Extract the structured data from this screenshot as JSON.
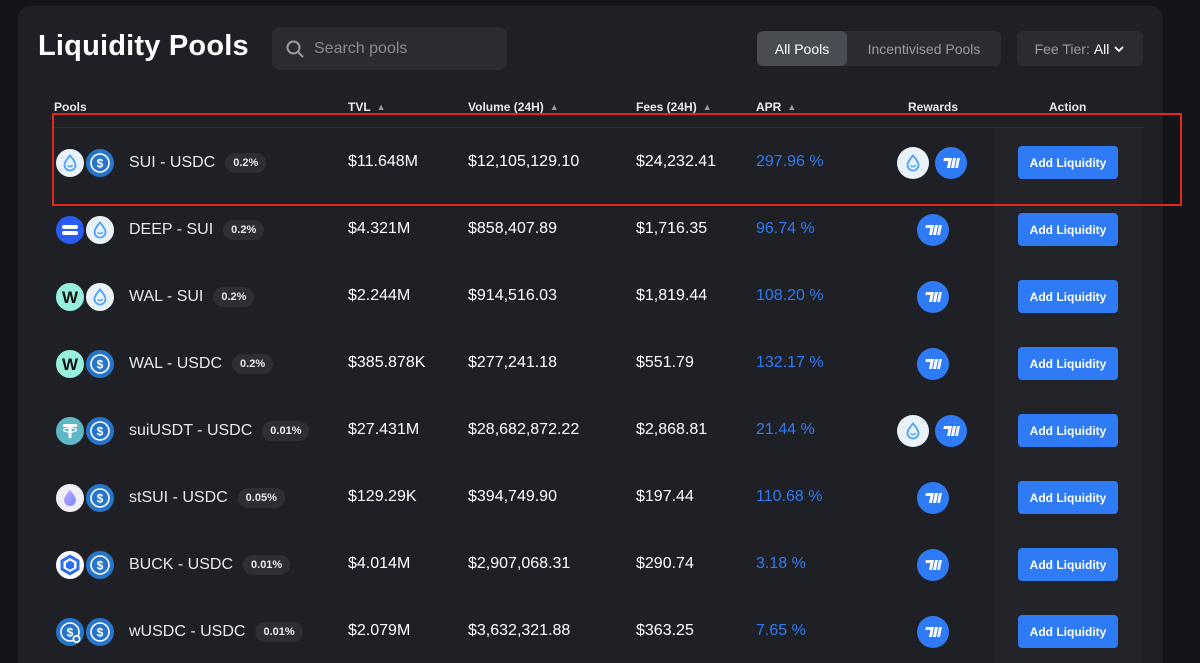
{
  "header": {
    "title": "Liquidity Pools",
    "search_placeholder": "Search pools",
    "tabs": [
      {
        "label": "All Pools",
        "active": true
      },
      {
        "label": "Incentivised Pools",
        "active": false
      }
    ],
    "fee_tier": {
      "label": "Fee Tier:",
      "value": "All"
    }
  },
  "columns": {
    "pools": "Pools",
    "tvl": "TVL",
    "volume": "Volume (24H)",
    "fees": "Fees (24H)",
    "apr": "APR",
    "rewards": "Rewards",
    "action": "Action"
  },
  "colors": {
    "accent": "#2f7bf5",
    "panel": "#1f2025",
    "highlight": "#e3261f"
  },
  "rows": [
    {
      "token_a": "sui-icon",
      "token_b": "usdc-icon",
      "pair": "SUI - USDC",
      "fee": "0.2%",
      "tvl": "$11.648M",
      "volume": "$12,105,129.10",
      "fees": "$24,232.41",
      "apr": "297.96 %",
      "rewards": [
        "sui-icon",
        "turbos-icon"
      ],
      "action": "Add Liquidity"
    },
    {
      "token_a": "deep-icon",
      "token_b": "sui-icon",
      "pair": "DEEP - SUI",
      "fee": "0.2%",
      "tvl": "$4.321M",
      "volume": "$858,407.89",
      "fees": "$1,716.35",
      "apr": "96.74 %",
      "rewards": [
        "turbos-icon"
      ],
      "action": "Add Liquidity"
    },
    {
      "token_a": "wal-icon",
      "token_b": "sui-icon",
      "pair": "WAL - SUI",
      "fee": "0.2%",
      "tvl": "$2.244M",
      "volume": "$914,516.03",
      "fees": "$1,819.44",
      "apr": "108.20 %",
      "rewards": [
        "turbos-icon"
      ],
      "action": "Add Liquidity"
    },
    {
      "token_a": "wal-icon",
      "token_b": "usdc-icon",
      "pair": "WAL - USDC",
      "fee": "0.2%",
      "tvl": "$385.878K",
      "volume": "$277,241.18",
      "fees": "$551.79",
      "apr": "132.17 %",
      "rewards": [
        "turbos-icon"
      ],
      "action": "Add Liquidity"
    },
    {
      "token_a": "tether-icon",
      "token_b": "usdc-icon",
      "pair": "suiUSDT - USDC",
      "fee": "0.01%",
      "tvl": "$27.431M",
      "volume": "$28,682,872.22",
      "fees": "$2,868.81",
      "apr": "21.44 %",
      "rewards": [
        "sui-icon",
        "turbos-icon"
      ],
      "action": "Add Liquidity"
    },
    {
      "token_a": "stsui-icon",
      "token_b": "usdc-icon",
      "pair": "stSUI - USDC",
      "fee": "0.05%",
      "tvl": "$129.29K",
      "volume": "$394,749.90",
      "fees": "$197.44",
      "apr": "110.68 %",
      "rewards": [
        "turbos-icon"
      ],
      "action": "Add Liquidity"
    },
    {
      "token_a": "buck-icon",
      "token_b": "usdc-icon",
      "pair": "BUCK - USDC",
      "fee": "0.01%",
      "tvl": "$4.014M",
      "volume": "$2,907,068.31",
      "fees": "$290.74",
      "apr": "3.18 %",
      "rewards": [
        "turbos-icon"
      ],
      "action": "Add Liquidity"
    },
    {
      "token_a": "wusdc-icon",
      "token_b": "usdc-icon",
      "pair": "wUSDC - USDC",
      "fee": "0.01%",
      "tvl": "$2.079M",
      "volume": "$3,632,321.88",
      "fees": "$363.25",
      "apr": "7.65 %",
      "rewards": [
        "turbos-icon"
      ],
      "action": "Add Liquidity"
    }
  ]
}
